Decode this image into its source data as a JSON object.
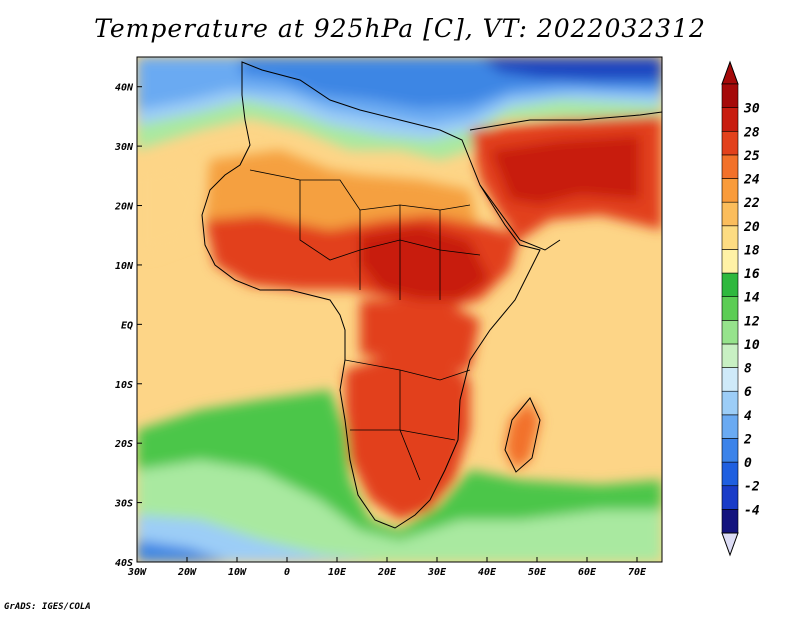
{
  "title": "Temperature at 925hPa [C], VT: 2022032312",
  "credit": "GrADS: IGES/COLA",
  "map": {
    "lon_range": [
      -30,
      75
    ],
    "lat_range": [
      -40,
      45
    ],
    "lon_ticks": [
      "30W",
      "20W",
      "10W",
      "0",
      "10E",
      "20E",
      "30E",
      "40E",
      "50E",
      "60E",
      "70E"
    ],
    "lat_ticks": [
      "40S",
      "30S",
      "20S",
      "10S",
      "EQ",
      "10N",
      "20N",
      "30N",
      "40N"
    ]
  },
  "colorbar": {
    "labels": [
      "-4",
      "-2",
      "0",
      "2",
      "4",
      "6",
      "8",
      "10",
      "12",
      "14",
      "16",
      "18",
      "20",
      "22",
      "24",
      "25",
      "28",
      "30"
    ],
    "colors": [
      "#13137e",
      "#1a3cc8",
      "#1f5fe0",
      "#3b83ea",
      "#6aaaf2",
      "#9ccdf7",
      "#cfeaf9",
      "#c8f0c3",
      "#96e38c",
      "#5ccd55",
      "#2fb83e",
      "#fff2a6",
      "#fddc82",
      "#fbbd5c",
      "#f99b3a",
      "#f2712a",
      "#e2411c",
      "#c81d10",
      "#a50a0a"
    ],
    "min_color": "#dcdcf5"
  },
  "colors": {
    "hot": "#d72a12",
    "warm": "#f5a040",
    "mild": "#fdd587",
    "cool_green": "#4cc64a",
    "light_green": "#a9e9a0",
    "cold_blue": "#3d86e4",
    "deep_blue": "#1b45c0",
    "border": "#000000"
  }
}
